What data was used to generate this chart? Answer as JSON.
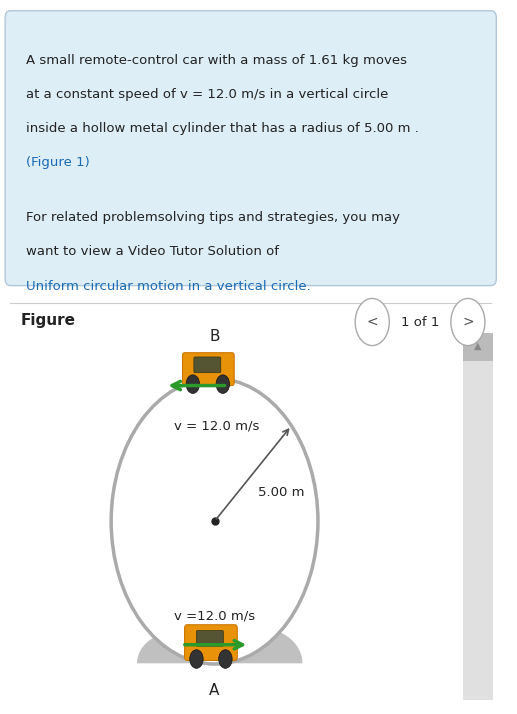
{
  "problem_text_line1": "A small remote-control car with a mass of 1.61 kg moves",
  "problem_text_line2": "at a constant speed of v = 12.0 m/s in a vertical circle",
  "problem_text_line3": "inside a hollow metal cylinder that has a radius of 5.00 m .",
  "problem_text_line4": "(Figure 1)",
  "tip_text_line1": "For related problemsolving tips and strategies, you may",
  "tip_text_line2": "want to view a Video Tutor Solution of",
  "tip_text_line3": "Uniform circular motion in a vertical circle.",
  "figure_label": "Figure",
  "nav_text": "1 of 1",
  "radius_label": "5.00 m",
  "v_top_label": "v = 12.0 m/s",
  "v_bottom_label": "v =12.0 m/s",
  "point_A": "A",
  "point_B": "B",
  "arrow_color": "#2a9a2a",
  "circle_color": "#aaaaaa",
  "center_dot_color": "#222222",
  "link_color": "#1a6ab5",
  "text_color": "#222222",
  "box_facecolor": "#ddeef6",
  "box_edgecolor": "#b0c8d8",
  "car_body_color": "#e8920a",
  "car_edge_color": "#cc7700",
  "car_window_color": "#555533",
  "wheel_color": "#333333",
  "bump_color": "#c0c0c0",
  "scrollbar_bg": "#e0e0e0",
  "scrollbar_thumb": "#bbbbbb",
  "nav_circle_edge": "#aaaaaa",
  "radius_arrow_color": "#555555"
}
